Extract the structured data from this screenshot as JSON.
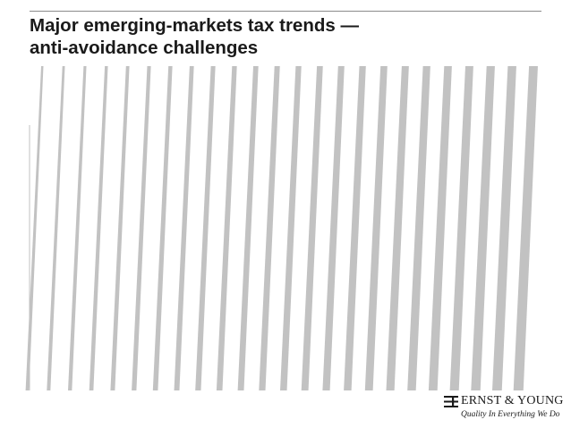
{
  "slide": {
    "title_line1": "Major emerging-markets tax trends —",
    "title_line2": "anti-avoidance challenges"
  },
  "brand": {
    "name": "ERNST & YOUNG",
    "tagline": "Quality In Everything We Do",
    "logo_icon": "ey-logo-icon"
  },
  "colors": {
    "stripe": "#c2c2c2",
    "title": "#1a1a1a",
    "rule": "#8a8a8a"
  }
}
